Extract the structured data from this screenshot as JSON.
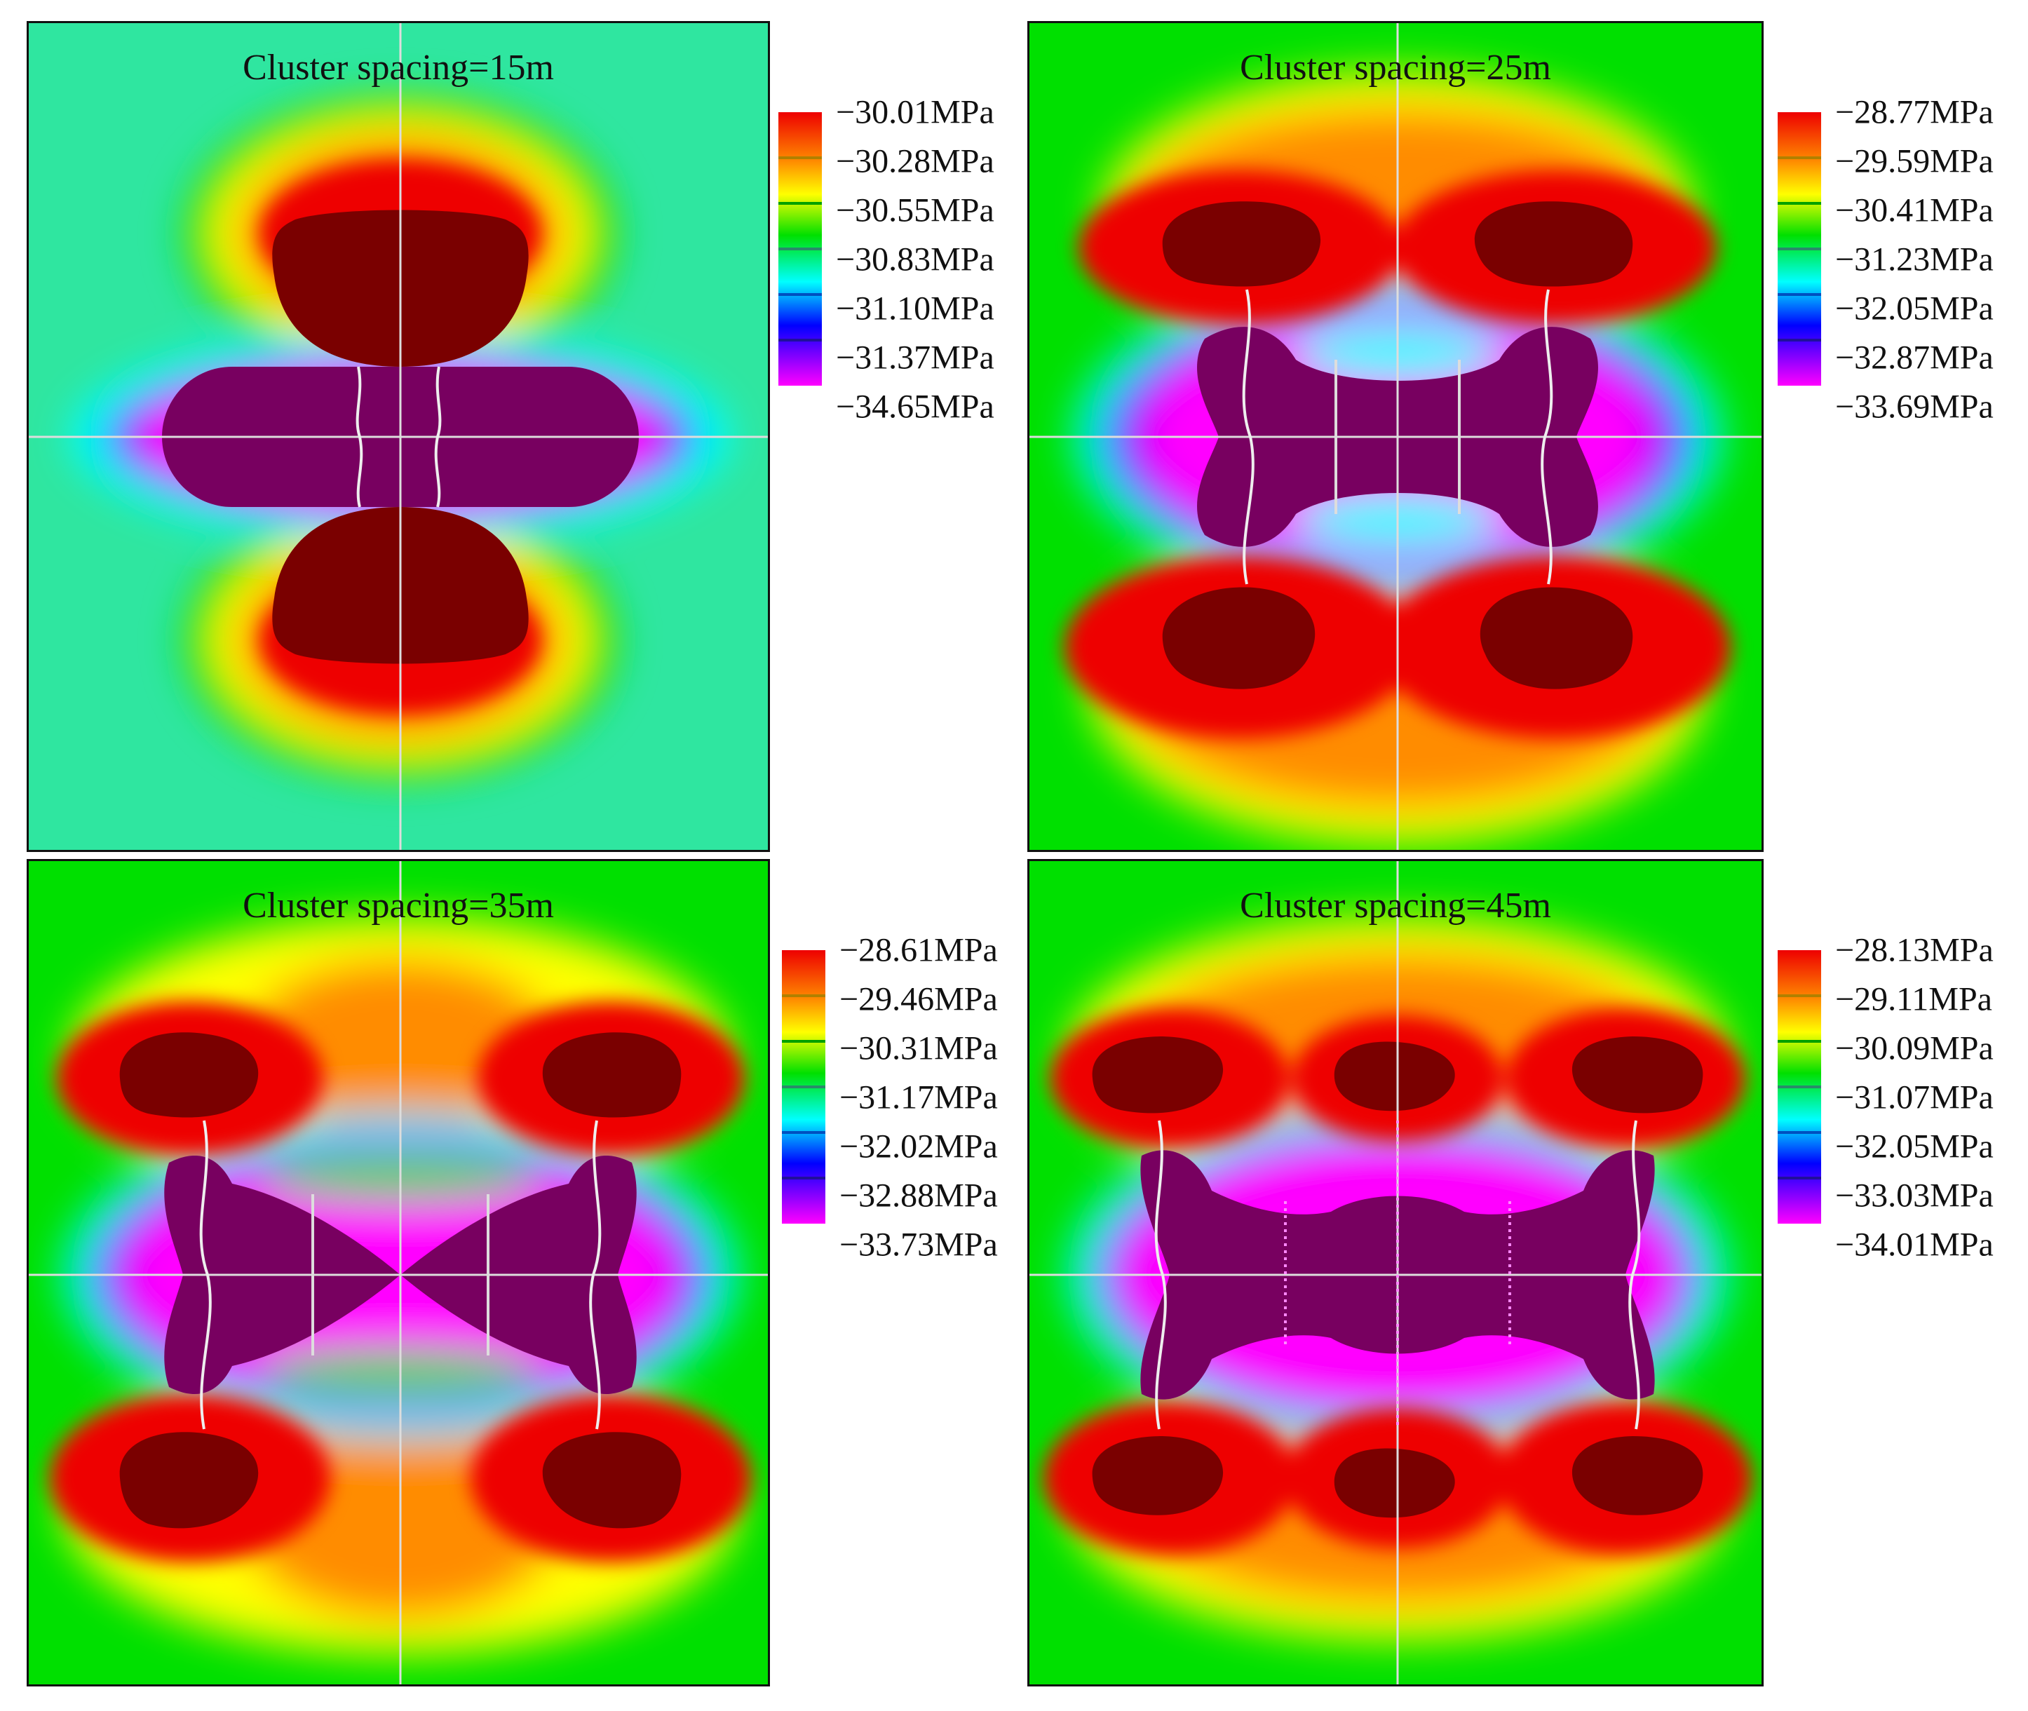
{
  "chart_data": [
    {
      "type": "heatmap",
      "title": "Cluster spacing=15m",
      "quantity": "stress",
      "unit": "MPa",
      "fractures": 2,
      "legend": {
        "labels": [
          "−30.01MPa",
          "−30.28MPa",
          "−30.55MPa",
          "−30.83MPa",
          "−31.10MPa",
          "−31.37MPa",
          "−34.65MPa"
        ],
        "values": [
          -30.01,
          -30.28,
          -30.55,
          -30.83,
          -31.1,
          -31.37,
          -34.65
        ]
      }
    },
    {
      "type": "heatmap",
      "title": "Cluster spacing=25m",
      "quantity": "stress",
      "unit": "MPa",
      "fractures": 4,
      "legend": {
        "labels": [
          "−28.77MPa",
          "−29.59MPa",
          "−30.41MPa",
          "−31.23MPa",
          "−32.05MPa",
          "−32.87MPa",
          "−33.69MPa"
        ],
        "values": [
          -28.77,
          -29.59,
          -30.41,
          -31.23,
          -32.05,
          -32.87,
          -33.69
        ]
      }
    },
    {
      "type": "heatmap",
      "title": "Cluster spacing=35m",
      "quantity": "stress",
      "unit": "MPa",
      "fractures": 4,
      "legend": {
        "labels": [
          "−28.61MPa",
          "−29.46MPa",
          "−30.31MPa",
          "−31.17MPa",
          "−32.02MPa",
          "−32.88MPa",
          "−33.73MPa"
        ],
        "values": [
          -28.61,
          -29.46,
          -30.31,
          -31.17,
          -32.02,
          -32.88,
          -33.73
        ]
      }
    },
    {
      "type": "heatmap",
      "title": "Cluster spacing=45m",
      "quantity": "stress",
      "unit": "MPa",
      "fractures": 5,
      "legend": {
        "labels": [
          "−28.13MPa",
          "−29.11MPa",
          "−30.09MPa",
          "−31.07MPa",
          "−32.05MPa",
          "−33.03MPa",
          "−34.01MPa"
        ],
        "values": [
          -28.13,
          -29.11,
          -30.09,
          -31.07,
          -32.05,
          -33.03,
          -34.01
        ]
      }
    }
  ],
  "palette": {
    "max": "#ee0000",
    "hi": "#ff8c00",
    "mid_hi": "#ffff00",
    "mid": "#00e000",
    "mid_lo": "#00ffff",
    "lo": "#0000ff",
    "min": "#ff00ff",
    "overshoot_hi": "#7a0000",
    "overshoot_lo": "#780060"
  }
}
